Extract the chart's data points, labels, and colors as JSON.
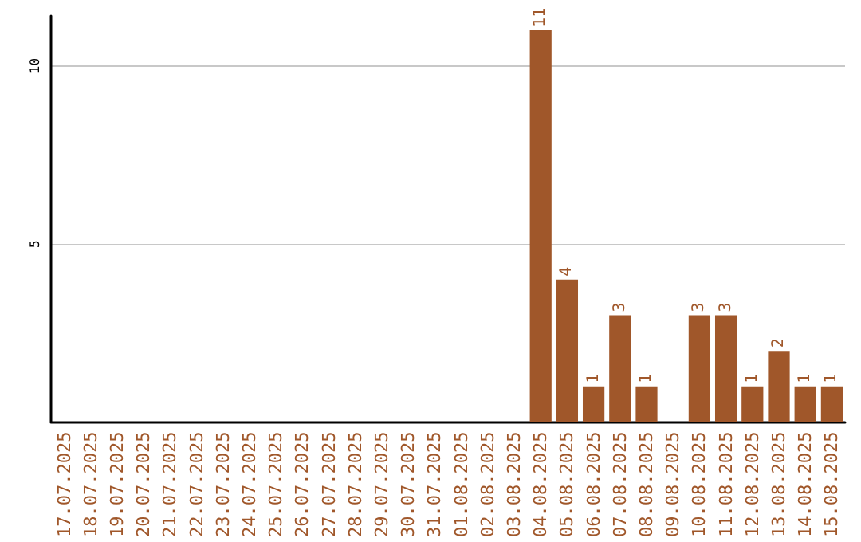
{
  "chart_data": {
    "type": "bar",
    "categories": [
      "17.07.2025",
      "18.07.2025",
      "19.07.2025",
      "20.07.2025",
      "21.07.2025",
      "22.07.2025",
      "23.07.2025",
      "24.07.2025",
      "25.07.2025",
      "26.07.2025",
      "27.07.2025",
      "28.07.2025",
      "29.07.2025",
      "30.07.2025",
      "31.07.2025",
      "01.08.2025",
      "02.08.2025",
      "03.08.2025",
      "04.08.2025",
      "05.08.2025",
      "06.08.2025",
      "07.08.2025",
      "08.08.2025",
      "09.08.2025",
      "10.08.2025",
      "11.08.2025",
      "12.08.2025",
      "13.08.2025",
      "14.08.2025",
      "15.08.2025"
    ],
    "values": [
      0,
      0,
      0,
      0,
      0,
      0,
      0,
      0,
      0,
      0,
      0,
      0,
      0,
      0,
      0,
      0,
      0,
      0,
      11,
      4,
      1,
      3,
      1,
      0,
      3,
      3,
      1,
      2,
      1,
      1
    ],
    "value_labels": [
      null,
      null,
      null,
      null,
      null,
      null,
      null,
      null,
      null,
      null,
      null,
      null,
      null,
      null,
      null,
      null,
      null,
      null,
      "11",
      "4",
      "1",
      "3",
      "1",
      null,
      "3",
      "3",
      "1",
      "2",
      "1",
      "1"
    ],
    "color": "#a0572a",
    "ylim": [
      0,
      11.4
    ],
    "yticks": [
      5,
      10
    ],
    "grid": "y"
  }
}
